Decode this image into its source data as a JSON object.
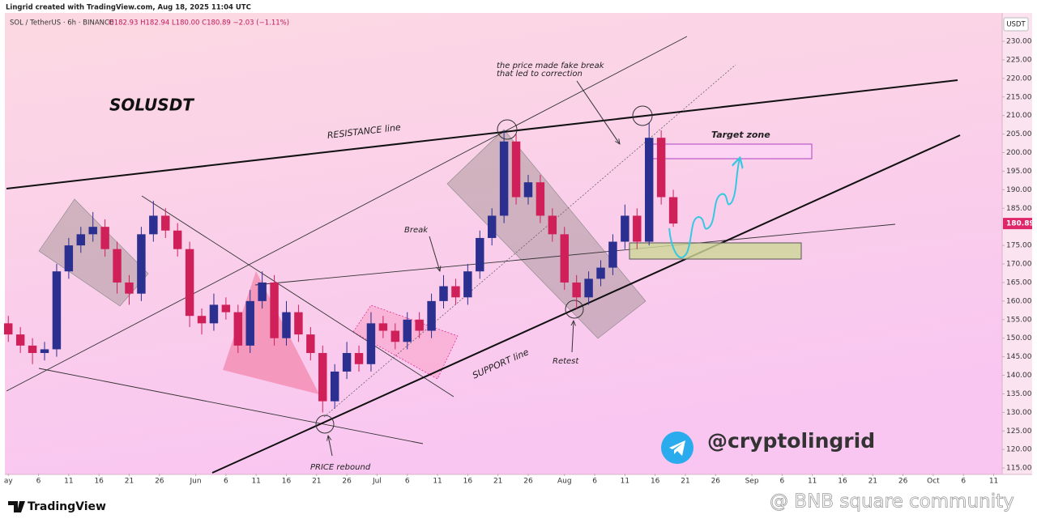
{
  "header": {
    "credit": "Lingrid created with TradingView.com, Aug 18, 2025 11:04 UTC"
  },
  "chart_data": {
    "type": "candlestick",
    "title": "SOL / TetherUS · 6h · BINANCE",
    "ohlc_legend": "O182.93 H182.94 L180.00 C180.89 −2.03 (−1.11%)",
    "y_unit": "USDT",
    "up_color": "#2b2f8f",
    "down_color": "#d0205a",
    "last_price_color": "#e0266a",
    "annotations": {
      "symbol": "SOLUSDT",
      "resistance": "RESISTANCE line",
      "support": "SUPPORT line",
      "break": "Break",
      "retest": "Retest",
      "rebound": "PRICE rebound",
      "fake_break_1": "the price made fake break",
      "fake_break_2": "that led to correction",
      "target": "Target zone",
      "handle": "@cryptolingrid"
    },
    "x": [
      0,
      2,
      4,
      6,
      8,
      10,
      12,
      14,
      16,
      18,
      20,
      22,
      24,
      26,
      28,
      30,
      32,
      34,
      36,
      38,
      40,
      42,
      44,
      46,
      48,
      50,
      52,
      54,
      56,
      58,
      60,
      62,
      64,
      66,
      68,
      70,
      72,
      74,
      76,
      78,
      80,
      82,
      84,
      86,
      88,
      90,
      92,
      94,
      96,
      98,
      100,
      102,
      104,
      106,
      108,
      110
    ],
    "open": [
      154,
      151,
      148,
      146,
      147,
      168,
      175,
      178,
      180,
      174,
      165,
      162,
      178,
      183,
      179,
      174,
      156,
      154,
      159,
      157,
      148,
      160,
      165,
      150,
      157,
      151,
      146,
      133,
      141,
      146,
      143,
      154,
      152,
      149,
      155,
      152,
      160,
      164,
      161,
      168,
      177,
      183,
      203,
      188,
      192,
      183,
      178,
      165,
      161,
      166,
      169,
      176,
      183,
      176,
      204,
      188
    ],
    "high": [
      156,
      153,
      150,
      149,
      170,
      177,
      180,
      184,
      182,
      176,
      167,
      180,
      187,
      185,
      181,
      176,
      158,
      162,
      161,
      159,
      163,
      168,
      167,
      160,
      159,
      153,
      148,
      143,
      149,
      148,
      157,
      156,
      154,
      157,
      157,
      162,
      167,
      166,
      170,
      179,
      185,
      206,
      205,
      194,
      194,
      185,
      180,
      167,
      168,
      171,
      178,
      186,
      185,
      208,
      206,
      190
    ],
    "low": [
      149,
      146,
      143,
      144,
      145,
      166,
      173,
      176,
      172,
      162,
      159,
      160,
      176,
      177,
      172,
      153,
      151,
      152,
      155,
      146,
      146,
      158,
      148,
      148,
      149,
      144,
      130,
      131,
      139,
      141,
      141,
      150,
      147,
      147,
      150,
      150,
      158,
      159,
      159,
      166,
      175,
      181,
      186,
      186,
      181,
      176,
      163,
      158,
      159,
      164,
      167,
      174,
      174,
      175,
      186,
      180
    ],
    "close": [
      151,
      148,
      146,
      147,
      168,
      175,
      178,
      180,
      174,
      165,
      162,
      178,
      183,
      179,
      174,
      156,
      154,
      159,
      157,
      148,
      160,
      165,
      150,
      157,
      151,
      146,
      133,
      141,
      146,
      143,
      154,
      152,
      149,
      155,
      152,
      160,
      164,
      161,
      168,
      177,
      183,
      203,
      188,
      192,
      183,
      178,
      165,
      161,
      166,
      169,
      176,
      183,
      176,
      204,
      188,
      180.89
    ],
    "xlim": [
      -0.3,
      164.4
    ],
    "xticks": [
      {
        "value": 0,
        "label": "ay"
      },
      {
        "value": 5,
        "label": "6"
      },
      {
        "value": 10,
        "label": "11"
      },
      {
        "value": 15,
        "label": "16"
      },
      {
        "value": 20,
        "label": "21"
      },
      {
        "value": 25,
        "label": "26"
      },
      {
        "value": 31,
        "label": "Jun"
      },
      {
        "value": 36,
        "label": "6"
      },
      {
        "value": 41,
        "label": "11"
      },
      {
        "value": 46,
        "label": "16"
      },
      {
        "value": 51,
        "label": "21"
      },
      {
        "value": 56,
        "label": "26"
      },
      {
        "value": 61,
        "label": "Jul"
      },
      {
        "value": 66,
        "label": "6"
      },
      {
        "value": 71,
        "label": "11"
      },
      {
        "value": 76,
        "label": "16"
      },
      {
        "value": 81,
        "label": "21"
      },
      {
        "value": 86,
        "label": "26"
      },
      {
        "value": 92,
        "label": "Aug"
      },
      {
        "value": 97,
        "label": "6"
      },
      {
        "value": 102,
        "label": "11"
      },
      {
        "value": 107,
        "label": "16"
      },
      {
        "value": 112,
        "label": "21"
      },
      {
        "value": 117,
        "label": "26"
      },
      {
        "value": 123,
        "label": "Sep"
      },
      {
        "value": 128,
        "label": "6"
      },
      {
        "value": 133,
        "label": "11"
      },
      {
        "value": 138,
        "label": "16"
      },
      {
        "value": 143,
        "label": "21"
      },
      {
        "value": 148,
        "label": "26"
      },
      {
        "value": 153,
        "label": "Oct"
      },
      {
        "value": 158,
        "label": "6"
      },
      {
        "value": 163,
        "label": "11"
      }
    ],
    "ylim": [
      113.5,
      237.2
    ],
    "yticks": [
      {
        "value": 115,
        "label": "115.00"
      },
      {
        "value": 120,
        "label": "120.00"
      },
      {
        "value": 125,
        "label": "125.00"
      },
      {
        "value": 130,
        "label": "130.00"
      },
      {
        "value": 135,
        "label": "135.00"
      },
      {
        "value": 140,
        "label": "140.00"
      },
      {
        "value": 145,
        "label": "145.00"
      },
      {
        "value": 150,
        "label": "150.00"
      },
      {
        "value": 155,
        "label": "155.00"
      },
      {
        "value": 160,
        "label": "160.00"
      },
      {
        "value": 165,
        "label": "165.00"
      },
      {
        "value": 170,
        "label": "170.00"
      },
      {
        "value": 175,
        "label": "175.00"
      },
      {
        "value": 180,
        "label": "180.00"
      },
      {
        "value": 185,
        "label": "185.00"
      },
      {
        "value": 190,
        "label": "190.00"
      },
      {
        "value": 195,
        "label": "195.00"
      },
      {
        "value": 200,
        "label": "200.00"
      },
      {
        "value": 205,
        "label": "205.00"
      },
      {
        "value": 210,
        "label": "210.00"
      },
      {
        "value": 215,
        "label": "215.00"
      },
      {
        "value": 220,
        "label": "220.00"
      },
      {
        "value": 225,
        "label": "225.00"
      },
      {
        "value": 230,
        "label": "230.00"
      }
    ]
  },
  "footer": {
    "brand": "TradingView",
    "watermark": "@ BNB square community"
  }
}
